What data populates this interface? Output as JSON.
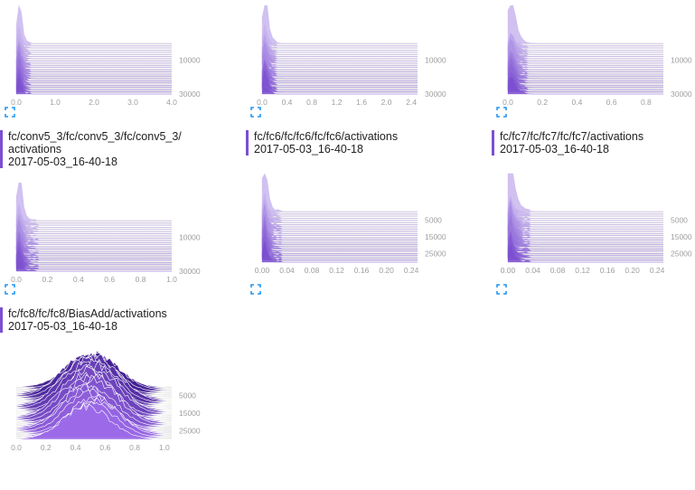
{
  "accent_color": "#7b4fd0",
  "expand_icon": "fullscreen-expand-icon",
  "chart_data": [
    {
      "type": "area",
      "subtype": "stacked-histogram-ridgeline",
      "tag": "fc/conv5_3/fc/conv5_3/fc/conv5_3/activations",
      "tag_lines": [
        "fc/conv5_3/fc/conv5_3/fc/conv5_3/",
        "activations"
      ],
      "run": "2017-05-03_16-40-18",
      "xlim": [
        0,
        4.0
      ],
      "x_ticks": [
        "0.0",
        "1.0",
        "2.0",
        "3.0",
        "4.0"
      ],
      "y_ticks": [
        "10000",
        "30000"
      ],
      "ylim": [
        0,
        30000
      ],
      "distribution": {
        "peak_x": 0.08,
        "width": 0.05,
        "tail": 0.35,
        "shape": "spike"
      }
    },
    {
      "type": "area",
      "subtype": "stacked-histogram-ridgeline",
      "tag": "fc/fc6/fc/fc6/fc/fc6/activations",
      "tag_lines": [
        "fc/fc6/fc/fc6/fc/fc6/activations"
      ],
      "run": "2017-05-03_16-40-18",
      "xlim": [
        0,
        2.5
      ],
      "x_ticks": [
        "0.0",
        "0.4",
        "0.8",
        "1.2",
        "1.6",
        "2.0",
        "2.4"
      ],
      "y_ticks": [
        "10000",
        "30000"
      ],
      "ylim": [
        0,
        30000
      ],
      "distribution": {
        "peak_x": 0.05,
        "width": 0.04,
        "tail": 0.25,
        "shape": "spike"
      }
    },
    {
      "type": "area",
      "subtype": "stacked-histogram-ridgeline",
      "tag": "fc/fc7/fc/fc7/fc/fc7/activations",
      "tag_lines": [
        "fc/fc7/fc/fc7/fc/fc7/activations"
      ],
      "run": "2017-05-03_16-40-18",
      "xlim": [
        0,
        0.9
      ],
      "x_ticks": [
        "0.0",
        "0.2",
        "0.4",
        "0.6",
        "0.8"
      ],
      "y_ticks": [
        "10000",
        "30000"
      ],
      "ylim": [
        0,
        30000
      ],
      "distribution": {
        "peak_x": 0.02,
        "width": 0.02,
        "tail": 0.12,
        "shape": "spike"
      }
    },
    {
      "type": "area",
      "subtype": "stacked-histogram-ridgeline",
      "tag": "fc/fc7/fc/fc7/fc/fc7/activations",
      "tag_lines": [],
      "run": "",
      "xlim": [
        0,
        1.0
      ],
      "x_ticks": [
        "0.0",
        "0.2",
        "0.4",
        "0.6",
        "0.8",
        "1.0"
      ],
      "y_ticks": [
        "10000",
        "30000"
      ],
      "ylim": [
        0,
        30000
      ],
      "distribution": {
        "peak_x": 0.02,
        "width": 0.015,
        "tail": 0.15,
        "shape": "spike"
      }
    },
    {
      "type": "area",
      "subtype": "stacked-histogram-ridgeline",
      "tag": "",
      "tag_lines": [],
      "run": "",
      "xlim": [
        0,
        0.25
      ],
      "x_ticks": [
        "0.00",
        "0.04",
        "0.08",
        "0.12",
        "0.16",
        "0.20",
        "0.24"
      ],
      "y_ticks": [
        "5000",
        "15000",
        "25000"
      ],
      "ylim": [
        0,
        30000
      ],
      "distribution": {
        "peak_x": 0.004,
        "width": 0.004,
        "tail": 0.03,
        "shape": "spike"
      }
    },
    {
      "type": "area",
      "subtype": "stacked-histogram-ridgeline",
      "tag": "",
      "tag_lines": [],
      "run": "",
      "xlim": [
        0,
        0.25
      ],
      "x_ticks": [
        "0.00",
        "0.04",
        "0.08",
        "0.12",
        "0.16",
        "0.20",
        "0.24"
      ],
      "y_ticks": [
        "5000",
        "15000",
        "25000"
      ],
      "ylim": [
        0,
        30000
      ],
      "distribution": {
        "peak_x": 0.004,
        "width": 0.006,
        "tail": 0.035,
        "shape": "spike"
      }
    },
    {
      "type": "area",
      "subtype": "stacked-histogram-ridgeline",
      "tag": "fc/fc8/fc/fc8/BiasAdd/activations",
      "tag_lines": [
        "fc/fc8/fc/fc8/BiasAdd/activations"
      ],
      "run": "2017-05-03_16-40-18",
      "xlim": [
        0,
        1.05
      ],
      "x_ticks": [
        "0.0",
        "0.2",
        "0.4",
        "0.6",
        "0.8",
        "1.0"
      ],
      "y_ticks": [
        "5000",
        "15000",
        "25000"
      ],
      "ylim": [
        0,
        30000
      ],
      "distribution": {
        "peak_x": 0.5,
        "width": 0.16,
        "tail": 0.0,
        "shape": "bell"
      }
    }
  ]
}
